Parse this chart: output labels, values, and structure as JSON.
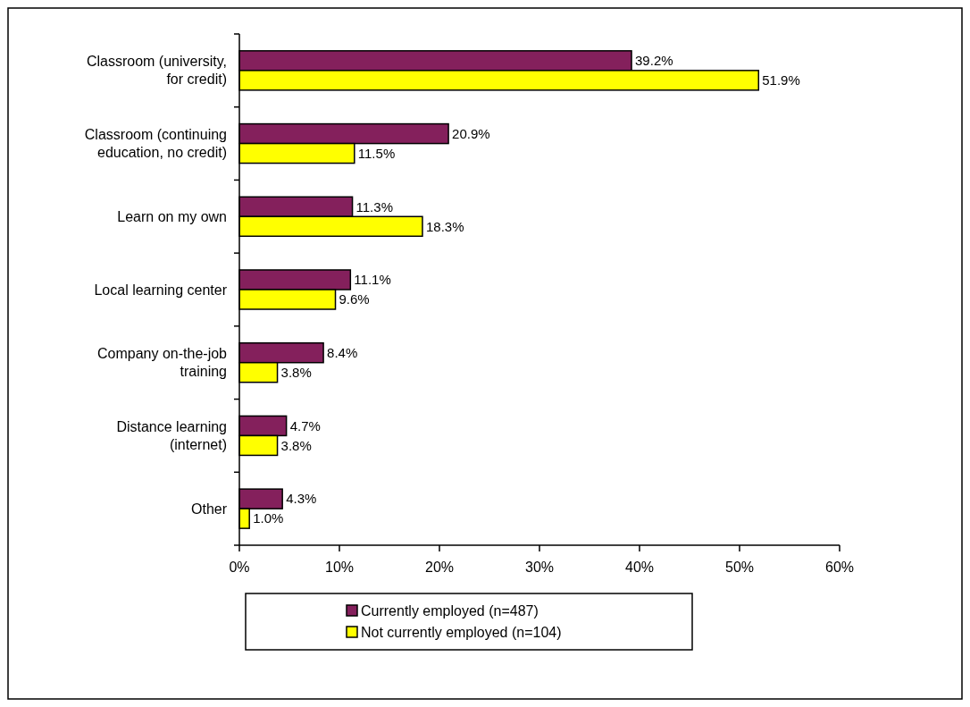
{
  "chart_data": {
    "type": "bar",
    "orientation": "horizontal",
    "categories": [
      "Classroom (university, for credit)",
      "Classroom (continuing education, no credit)",
      "Learn on my own",
      "Local learning center",
      "Company on-the-job training",
      "Distance learning (internet)",
      "Other"
    ],
    "series": [
      {
        "name": "Currently employed (n=487)",
        "color": "#84205c",
        "values": [
          39.2,
          20.9,
          11.3,
          11.1,
          8.4,
          4.7,
          4.3
        ],
        "value_labels": [
          "39.2%",
          "20.9%",
          "11.3%",
          "11.1%",
          "8.4%",
          "4.7%",
          "4.3%"
        ]
      },
      {
        "name": "Not currently employed (n=104)",
        "color": "#ffff00",
        "values": [
          51.9,
          11.5,
          18.3,
          9.6,
          3.8,
          3.8,
          1.0
        ],
        "value_labels": [
          "51.9%",
          "11.5%",
          "18.3%",
          "9.6%",
          "3.8%",
          "3.8%",
          "1.0%"
        ]
      }
    ],
    "xlim": [
      0,
      60
    ],
    "xticks": [
      {
        "value": 0,
        "label": "0%"
      },
      {
        "value": 10,
        "label": "10%"
      },
      {
        "value": 20,
        "label": "20%"
      },
      {
        "value": 30,
        "label": "30%"
      },
      {
        "value": 40,
        "label": "40%"
      },
      {
        "value": 50,
        "label": "50%"
      },
      {
        "value": 60,
        "label": "60%"
      }
    ],
    "legend": "bottom",
    "grid": false
  }
}
